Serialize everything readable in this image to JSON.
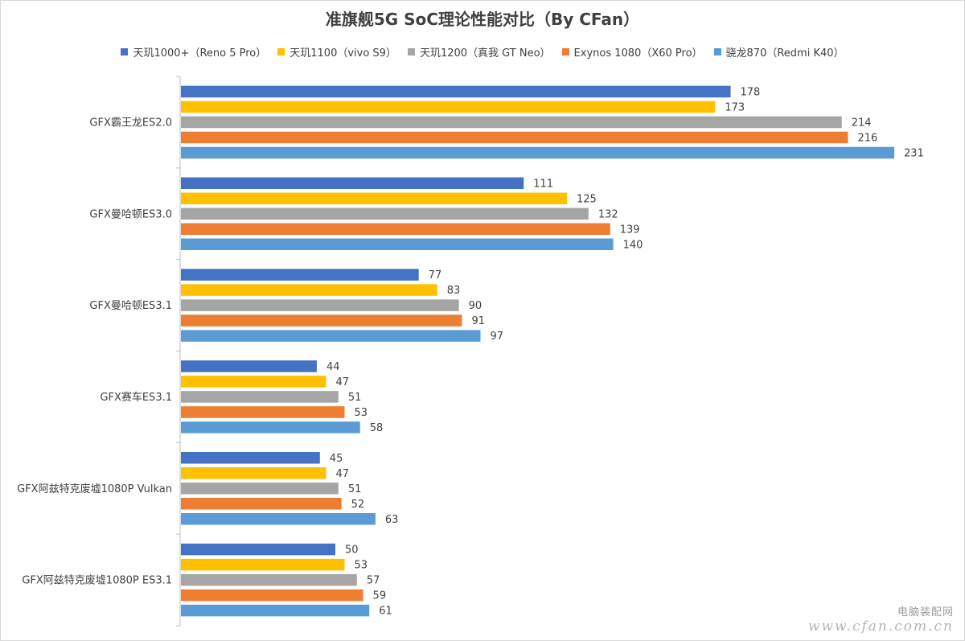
{
  "chart_data": {
    "type": "bar",
    "orientation": "horizontal",
    "title": "准旗舰5G SoC理论性能对比（By CFan）",
    "legend_position": "top",
    "grid": false,
    "xlim": [
      0,
      240
    ],
    "categories": [
      "GFX霸王龙ES2.0",
      "GFX曼哈顿ES3.0",
      "GFX曼哈顿ES3.1",
      "GFX赛车ES3.1",
      "GFX阿兹特克废墟1080P Vulkan",
      "GFX阿兹特克废墟1080P ES3.1"
    ],
    "series": [
      {
        "name": "天玑1000+（Reno 5 Pro）",
        "color": "#4472c4",
        "values": [
          178,
          111,
          77,
          44,
          45,
          50
        ]
      },
      {
        "name": "天玑1100（vivo S9）",
        "color": "#ffc000",
        "values": [
          173,
          125,
          83,
          47,
          47,
          53
        ]
      },
      {
        "name": "天玑1200（真我 GT Neo）",
        "color": "#a5a5a5",
        "values": [
          214,
          132,
          90,
          51,
          51,
          57
        ]
      },
      {
        "name": "Exynos 1080（X60 Pro）",
        "color": "#ed7d31",
        "values": [
          216,
          139,
          91,
          53,
          52,
          59
        ]
      },
      {
        "name": "骁龙870（Redmi K40）",
        "color": "#5b9bd5",
        "values": [
          231,
          140,
          97,
          58,
          63,
          61
        ]
      }
    ]
  },
  "watermark": {
    "line1": "电脑装配网",
    "line2": "www.cfan.com.cn"
  }
}
